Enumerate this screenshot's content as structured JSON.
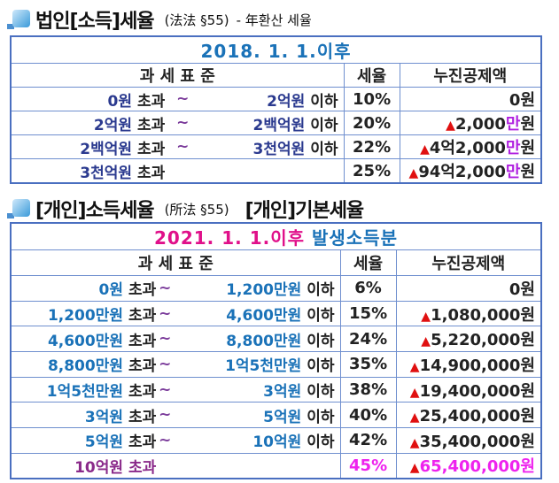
{
  "corporate": {
    "heading": "법인[소득]세율",
    "law": "(法法 §55)",
    "note": "- 年환산 세율",
    "period": "2018. 1. 1.이후",
    "headers": [
      "과 세 표 준",
      "세율",
      "누진공제액"
    ],
    "rows": [
      {
        "from": "0원",
        "exceed": "초과",
        "tilde": "~",
        "to": "2억원",
        "le": "이하",
        "rate": "10%",
        "tri": "",
        "ded_a": "0",
        "ded_man": "",
        "ded_b": "원"
      },
      {
        "from": "2억원",
        "exceed": "초과",
        "tilde": "~",
        "to": "2백억원",
        "le": "이하",
        "rate": "20%",
        "tri": "▲",
        "ded_a": "2,000",
        "ded_man": "만",
        "ded_b": "원"
      },
      {
        "from": "2백억원",
        "exceed": "초과",
        "tilde": "~",
        "to": "3천억원",
        "le": "이하",
        "rate": "22%",
        "tri": "▲",
        "ded_a": "4억2,000",
        "ded_man": "만",
        "ded_b": "원"
      },
      {
        "from": "3천억원",
        "exceed": "초과",
        "tilde": "",
        "to": "",
        "le": "",
        "rate": "25%",
        "tri": "▲",
        "ded_a": "94억2,000",
        "ded_man": "만",
        "ded_b": "원"
      }
    ]
  },
  "individual": {
    "heading": "[개인]소득세율",
    "law": "(所法 §55)",
    "note": "[개인]기본세율",
    "period_a": "2021. 1. 1.이후",
    "period_b": "발생소득분",
    "headers": [
      "과 세 표 준",
      "세율",
      "누진공제액"
    ],
    "rows": [
      {
        "from": "0원",
        "exceed": "초과",
        "tilde": "~",
        "to": "1,200만원",
        "le": "이하",
        "rate": "6%",
        "tri": "",
        "ded": "0원"
      },
      {
        "from": "1,200만원",
        "exceed": "초과",
        "tilde": "~",
        "to": "4,600만원",
        "le": "이하",
        "rate": "15%",
        "tri": "▲",
        "ded": "1,080,000원"
      },
      {
        "from": "4,600만원",
        "exceed": "초과",
        "tilde": "~",
        "to": "8,800만원",
        "le": "이하",
        "rate": "24%",
        "tri": "▲",
        "ded": "5,220,000원"
      },
      {
        "from": "8,800만원",
        "exceed": "초과",
        "tilde": "~",
        "to": "1억5천만원",
        "le": "이하",
        "rate": "35%",
        "tri": "▲",
        "ded": "14,900,000원"
      },
      {
        "from": "1억5천만원",
        "exceed": "초과",
        "tilde": "~",
        "to": "3억원",
        "le": "이하",
        "rate": "38%",
        "tri": "▲",
        "ded": "19,400,000원"
      },
      {
        "from": "3억원",
        "exceed": "초과",
        "tilde": "~",
        "to": "5억원",
        "le": "이하",
        "rate": "40%",
        "tri": "▲",
        "ded": "25,400,000원"
      },
      {
        "from": "5억원",
        "exceed": "초과",
        "tilde": "~",
        "to": "10억원",
        "le": "이하",
        "rate": "42%",
        "tri": "▲",
        "ded": "35,400,000원"
      },
      {
        "from": "10억원",
        "exceed": "초과",
        "tilde": "",
        "to": "",
        "le": "",
        "rate": "45%",
        "tri": "▲",
        "ded": "65,400,000원"
      }
    ]
  },
  "colors": {
    "navy": "#2b3a8f",
    "blue": "#1a72b8",
    "magenta": "#e0108a",
    "pink": "#ee22ee",
    "purple": "#8a2a8a",
    "red": "#e01010"
  }
}
